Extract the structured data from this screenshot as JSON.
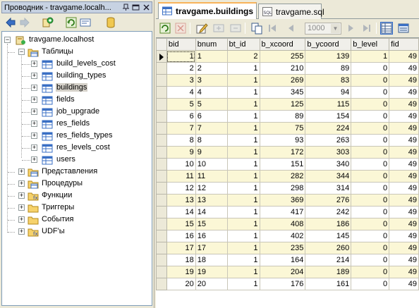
{
  "explorer": {
    "title": "Проводник - travgame.localh...",
    "tree": {
      "root": "travgame.localhost",
      "tables_label": "Таблицы",
      "tables": [
        "build_levels_cost",
        "building_types",
        "buildings",
        "fields",
        "job_upgrade",
        "res_fields",
        "res_fields_types",
        "res_levels_cost",
        "users"
      ],
      "selected_table": "buildings",
      "folders": [
        "Представления",
        "Процедуры",
        "Функции",
        "Триггеры",
        "События",
        "UDF'ы"
      ]
    }
  },
  "tabs": [
    {
      "label": "travgame.buildings",
      "active": true,
      "icon": "table-icon"
    },
    {
      "label": "travgame.sql",
      "active": false,
      "icon": "sql-file-icon"
    }
  ],
  "grid_toolbar": {
    "limit_value": "1000"
  },
  "grid": {
    "columns": [
      "bid",
      "bnum",
      "bt_id",
      "b_xcoord",
      "b_ycoord",
      "b_level",
      "fid"
    ],
    "rows": [
      [
        "1",
        "1",
        "2",
        "255",
        "139",
        "1",
        "49"
      ],
      [
        "2",
        "2",
        "1",
        "210",
        "89",
        "0",
        "49"
      ],
      [
        "3",
        "3",
        "1",
        "269",
        "83",
        "0",
        "49"
      ],
      [
        "4",
        "4",
        "1",
        "345",
        "94",
        "0",
        "49"
      ],
      [
        "5",
        "5",
        "1",
        "125",
        "115",
        "0",
        "49"
      ],
      [
        "6",
        "6",
        "1",
        "89",
        "154",
        "0",
        "49"
      ],
      [
        "7",
        "7",
        "1",
        "75",
        "224",
        "0",
        "49"
      ],
      [
        "8",
        "8",
        "1",
        "93",
        "263",
        "0",
        "49"
      ],
      [
        "9",
        "9",
        "1",
        "172",
        "303",
        "0",
        "49"
      ],
      [
        "10",
        "10",
        "1",
        "151",
        "340",
        "0",
        "49"
      ],
      [
        "11",
        "11",
        "1",
        "282",
        "344",
        "0",
        "49"
      ],
      [
        "12",
        "12",
        "1",
        "298",
        "314",
        "0",
        "49"
      ],
      [
        "13",
        "13",
        "1",
        "369",
        "276",
        "0",
        "49"
      ],
      [
        "14",
        "14",
        "1",
        "417",
        "242",
        "0",
        "49"
      ],
      [
        "15",
        "15",
        "1",
        "408",
        "186",
        "0",
        "49"
      ],
      [
        "16",
        "16",
        "1",
        "402",
        "145",
        "0",
        "49"
      ],
      [
        "17",
        "17",
        "1",
        "235",
        "260",
        "0",
        "49"
      ],
      [
        "18",
        "18",
        "1",
        "164",
        "214",
        "0",
        "49"
      ],
      [
        "19",
        "19",
        "1",
        "204",
        "189",
        "0",
        "49"
      ],
      [
        "20",
        "20",
        "1",
        "176",
        "161",
        "0",
        "49"
      ]
    ],
    "current_row": 0
  }
}
